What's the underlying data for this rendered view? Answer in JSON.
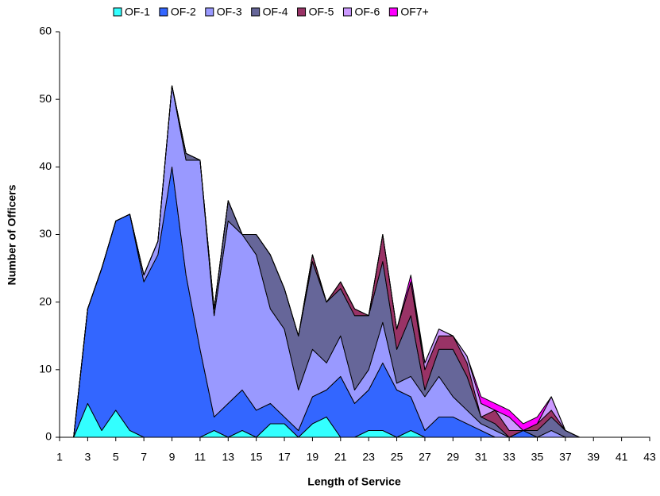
{
  "chart_data": {
    "type": "stacked_area",
    "x_label": "Length of Service",
    "y_label": "Number of Officers",
    "x": [
      1,
      2,
      3,
      4,
      5,
      6,
      7,
      8,
      9,
      10,
      11,
      12,
      13,
      14,
      15,
      16,
      17,
      18,
      19,
      20,
      21,
      22,
      23,
      24,
      25,
      26,
      27,
      28,
      29,
      30,
      31,
      32,
      33,
      34,
      35,
      36,
      37,
      38,
      39,
      40,
      41,
      42,
      43
    ],
    "series": [
      {
        "name": "OF-1",
        "color": "#33ffff",
        "values": [
          0,
          0,
          5,
          1,
          4,
          1,
          0,
          0,
          0,
          0,
          0,
          1,
          0,
          1,
          0,
          2,
          2,
          0,
          2,
          3,
          0,
          0,
          1,
          1,
          0,
          1,
          0,
          0,
          0,
          0,
          0,
          0,
          0,
          0,
          0,
          0,
          0,
          0,
          0,
          0,
          0,
          0,
          0
        ]
      },
      {
        "name": "OF-2",
        "color": "#3366ff",
        "values": [
          0,
          0,
          14,
          24,
          28,
          32,
          23,
          27,
          40,
          24,
          13,
          2,
          5,
          6,
          4,
          3,
          1,
          1,
          4,
          4,
          9,
          5,
          6,
          10,
          7,
          5,
          1,
          3,
          3,
          2,
          1,
          0,
          0,
          1,
          0,
          0,
          0,
          0,
          0,
          0,
          0,
          0,
          0
        ]
      },
      {
        "name": "OF-3",
        "color": "#9999ff",
        "values": [
          0,
          0,
          0,
          0,
          0,
          0,
          1,
          2,
          12,
          17,
          28,
          15,
          27,
          23,
          23,
          14,
          13,
          6,
          7,
          4,
          6,
          2,
          3,
          6,
          1,
          3,
          5,
          6,
          3,
          2,
          1,
          1,
          0,
          0,
          0,
          1,
          0,
          0,
          0,
          0,
          0,
          0,
          0
        ]
      },
      {
        "name": "OF-4",
        "color": "#666699",
        "values": [
          0,
          0,
          0,
          0,
          0,
          0,
          0,
          0,
          0,
          1,
          0,
          1,
          3,
          0,
          3,
          8,
          6,
          8,
          13,
          9,
          7,
          11,
          8,
          9,
          5,
          9,
          1,
          4,
          7,
          5,
          1,
          1,
          0,
          0,
          1,
          2,
          1,
          0,
          0,
          0,
          0,
          0,
          0
        ]
      },
      {
        "name": "OF-5",
        "color": "#993366",
        "values": [
          0,
          0,
          0,
          0,
          0,
          0,
          0,
          0,
          0,
          0,
          0,
          0,
          0,
          0,
          0,
          0,
          0,
          0,
          1,
          0,
          1,
          1,
          0,
          4,
          3,
          5,
          3,
          2,
          2,
          2,
          0,
          2,
          1,
          0,
          1,
          1,
          0,
          0,
          0,
          0,
          0,
          0,
          0
        ]
      },
      {
        "name": "OF-6",
        "color": "#cc99ff",
        "values": [
          0,
          0,
          0,
          0,
          0,
          0,
          0,
          0,
          0,
          0,
          0,
          0,
          0,
          0,
          0,
          0,
          0,
          0,
          0,
          0,
          0,
          0,
          0,
          0,
          0,
          0,
          1,
          1,
          0,
          1,
          2,
          0,
          2,
          0,
          0,
          2,
          0,
          0,
          0,
          0,
          0,
          0,
          0
        ]
      },
      {
        "name": "OF7+",
        "color": "#ff00ff",
        "values": [
          0,
          0,
          0,
          0,
          0,
          0,
          0,
          0,
          0,
          0,
          0,
          0,
          0,
          0,
          0,
          0,
          0,
          0,
          0,
          0,
          0,
          0,
          0,
          0,
          0,
          1,
          0,
          0,
          0,
          0,
          1,
          1,
          1,
          1,
          1,
          0,
          0,
          0,
          0,
          0,
          0,
          0,
          0
        ]
      }
    ],
    "xlim": [
      1,
      43
    ],
    "xticks": [
      1,
      3,
      5,
      7,
      9,
      11,
      13,
      15,
      17,
      19,
      21,
      23,
      25,
      27,
      29,
      31,
      33,
      35,
      37,
      39,
      41,
      43
    ],
    "ylim": [
      0,
      60
    ],
    "yticks": [
      0,
      10,
      20,
      30,
      40,
      50,
      60
    ],
    "grid": false,
    "legend": "top"
  }
}
